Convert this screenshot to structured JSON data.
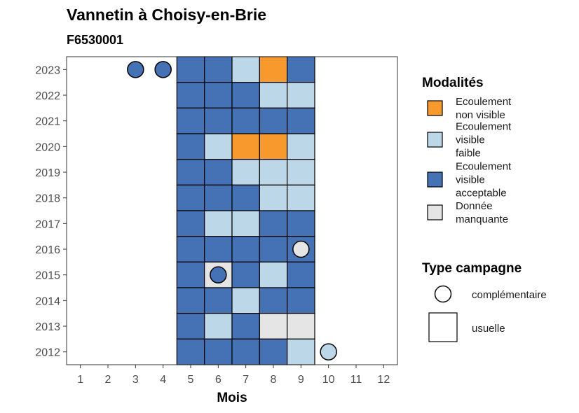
{
  "chart_data": {
    "type": "heatmap",
    "title": "Vannetin à Choisy-en-Brie",
    "subtitle": "F6530001",
    "xlabel": "Mois",
    "ylabel": "",
    "x_ticks": [
      "1",
      "2",
      "3",
      "4",
      "5",
      "6",
      "7",
      "8",
      "9",
      "10",
      "11",
      "12"
    ],
    "y_ticks": [
      "2012",
      "2013",
      "2014",
      "2015",
      "2016",
      "2017",
      "2018",
      "2019",
      "2020",
      "2021",
      "2022",
      "2023"
    ],
    "xlim": [
      0.5,
      12.5
    ],
    "ylim": [
      2011.5,
      2023.5
    ],
    "colors": {
      "nv": "#f7992d",
      "vf": "#bcd7e8",
      "va": "#4571b5",
      "dm": "#e5e5e5"
    },
    "cells": [
      {
        "year": 2023,
        "month": 5,
        "value": "va",
        "campagne": "usuelle"
      },
      {
        "year": 2023,
        "month": 6,
        "value": "va",
        "campagne": "usuelle"
      },
      {
        "year": 2023,
        "month": 7,
        "value": "vf",
        "campagne": "usuelle"
      },
      {
        "year": 2023,
        "month": 8,
        "value": "nv",
        "campagne": "usuelle"
      },
      {
        "year": 2023,
        "month": 9,
        "value": "va",
        "campagne": "usuelle"
      },
      {
        "year": 2023,
        "month": 3,
        "value": "va",
        "campagne": "complémentaire"
      },
      {
        "year": 2023,
        "month": 4,
        "value": "va",
        "campagne": "complémentaire"
      },
      {
        "year": 2022,
        "month": 5,
        "value": "va",
        "campagne": "usuelle"
      },
      {
        "year": 2022,
        "month": 6,
        "value": "va",
        "campagne": "usuelle"
      },
      {
        "year": 2022,
        "month": 7,
        "value": "va",
        "campagne": "usuelle"
      },
      {
        "year": 2022,
        "month": 8,
        "value": "vf",
        "campagne": "usuelle"
      },
      {
        "year": 2022,
        "month": 9,
        "value": "vf",
        "campagne": "usuelle"
      },
      {
        "year": 2021,
        "month": 5,
        "value": "va",
        "campagne": "usuelle"
      },
      {
        "year": 2021,
        "month": 6,
        "value": "va",
        "campagne": "usuelle"
      },
      {
        "year": 2021,
        "month": 7,
        "value": "va",
        "campagne": "usuelle"
      },
      {
        "year": 2021,
        "month": 8,
        "value": "va",
        "campagne": "usuelle"
      },
      {
        "year": 2021,
        "month": 9,
        "value": "va",
        "campagne": "usuelle"
      },
      {
        "year": 2020,
        "month": 5,
        "value": "va",
        "campagne": "usuelle"
      },
      {
        "year": 2020,
        "month": 6,
        "value": "vf",
        "campagne": "usuelle"
      },
      {
        "year": 2020,
        "month": 7,
        "value": "nv",
        "campagne": "usuelle"
      },
      {
        "year": 2020,
        "month": 8,
        "value": "nv",
        "campagne": "usuelle"
      },
      {
        "year": 2020,
        "month": 9,
        "value": "vf",
        "campagne": "usuelle"
      },
      {
        "year": 2019,
        "month": 5,
        "value": "va",
        "campagne": "usuelle"
      },
      {
        "year": 2019,
        "month": 6,
        "value": "va",
        "campagne": "usuelle"
      },
      {
        "year": 2019,
        "month": 7,
        "value": "vf",
        "campagne": "usuelle"
      },
      {
        "year": 2019,
        "month": 8,
        "value": "vf",
        "campagne": "usuelle"
      },
      {
        "year": 2019,
        "month": 9,
        "value": "vf",
        "campagne": "usuelle"
      },
      {
        "year": 2018,
        "month": 5,
        "value": "va",
        "campagne": "usuelle"
      },
      {
        "year": 2018,
        "month": 6,
        "value": "va",
        "campagne": "usuelle"
      },
      {
        "year": 2018,
        "month": 7,
        "value": "va",
        "campagne": "usuelle"
      },
      {
        "year": 2018,
        "month": 8,
        "value": "vf",
        "campagne": "usuelle"
      },
      {
        "year": 2018,
        "month": 9,
        "value": "vf",
        "campagne": "usuelle"
      },
      {
        "year": 2017,
        "month": 5,
        "value": "va",
        "campagne": "usuelle"
      },
      {
        "year": 2017,
        "month": 6,
        "value": "vf",
        "campagne": "usuelle"
      },
      {
        "year": 2017,
        "month": 7,
        "value": "vf",
        "campagne": "usuelle"
      },
      {
        "year": 2017,
        "month": 8,
        "value": "va",
        "campagne": "usuelle"
      },
      {
        "year": 2017,
        "month": 9,
        "value": "va",
        "campagne": "usuelle"
      },
      {
        "year": 2016,
        "month": 5,
        "value": "va",
        "campagne": "usuelle"
      },
      {
        "year": 2016,
        "month": 6,
        "value": "va",
        "campagne": "usuelle"
      },
      {
        "year": 2016,
        "month": 7,
        "value": "va",
        "campagne": "usuelle"
      },
      {
        "year": 2016,
        "month": 8,
        "value": "va",
        "campagne": "usuelle"
      },
      {
        "year": 2016,
        "month": 9,
        "value": "va",
        "campagne": "usuelle"
      },
      {
        "year": 2016,
        "month": 9,
        "value": "dm",
        "campagne": "complémentaire"
      },
      {
        "year": 2015,
        "month": 5,
        "value": "va",
        "campagne": "usuelle"
      },
      {
        "year": 2015,
        "month": 6,
        "value": "dm",
        "campagne": "usuelle"
      },
      {
        "year": 2015,
        "month": 7,
        "value": "va",
        "campagne": "usuelle"
      },
      {
        "year": 2015,
        "month": 8,
        "value": "vf",
        "campagne": "usuelle"
      },
      {
        "year": 2015,
        "month": 9,
        "value": "va",
        "campagne": "usuelle"
      },
      {
        "year": 2015,
        "month": 6,
        "value": "va",
        "campagne": "complémentaire"
      },
      {
        "year": 2014,
        "month": 5,
        "value": "va",
        "campagne": "usuelle"
      },
      {
        "year": 2014,
        "month": 6,
        "value": "va",
        "campagne": "usuelle"
      },
      {
        "year": 2014,
        "month": 7,
        "value": "vf",
        "campagne": "usuelle"
      },
      {
        "year": 2014,
        "month": 8,
        "value": "va",
        "campagne": "usuelle"
      },
      {
        "year": 2014,
        "month": 9,
        "value": "va",
        "campagne": "usuelle"
      },
      {
        "year": 2013,
        "month": 5,
        "value": "va",
        "campagne": "usuelle"
      },
      {
        "year": 2013,
        "month": 6,
        "value": "vf",
        "campagne": "usuelle"
      },
      {
        "year": 2013,
        "month": 7,
        "value": "va",
        "campagne": "usuelle"
      },
      {
        "year": 2013,
        "month": 8,
        "value": "dm",
        "campagne": "usuelle"
      },
      {
        "year": 2013,
        "month": 9,
        "value": "dm",
        "campagne": "usuelle"
      },
      {
        "year": 2012,
        "month": 5,
        "value": "va",
        "campagne": "usuelle"
      },
      {
        "year": 2012,
        "month": 6,
        "value": "va",
        "campagne": "usuelle"
      },
      {
        "year": 2012,
        "month": 7,
        "value": "va",
        "campagne": "usuelle"
      },
      {
        "year": 2012,
        "month": 8,
        "value": "va",
        "campagne": "usuelle"
      },
      {
        "year": 2012,
        "month": 9,
        "value": "vf",
        "campagne": "usuelle"
      },
      {
        "year": 2012,
        "month": 10,
        "value": "vf",
        "campagne": "complémentaire"
      }
    ],
    "legend": {
      "modalites_title": "Modalités",
      "modalites": [
        {
          "key": "nv",
          "lines": [
            "Ecoulement",
            "non visible"
          ]
        },
        {
          "key": "vf",
          "lines": [
            "Ecoulement",
            "visible",
            "faible"
          ]
        },
        {
          "key": "va",
          "lines": [
            "Ecoulement",
            "visible",
            "acceptable"
          ]
        },
        {
          "key": "dm",
          "lines": [
            "Donnée",
            "manquante"
          ]
        }
      ],
      "campagne_title": "Type campagne",
      "campagne": [
        {
          "key": "complémentaire",
          "label": "complémentaire",
          "shape": "circle"
        },
        {
          "key": "usuelle",
          "label": "usuelle",
          "shape": "square"
        }
      ],
      "placement": "right"
    }
  }
}
